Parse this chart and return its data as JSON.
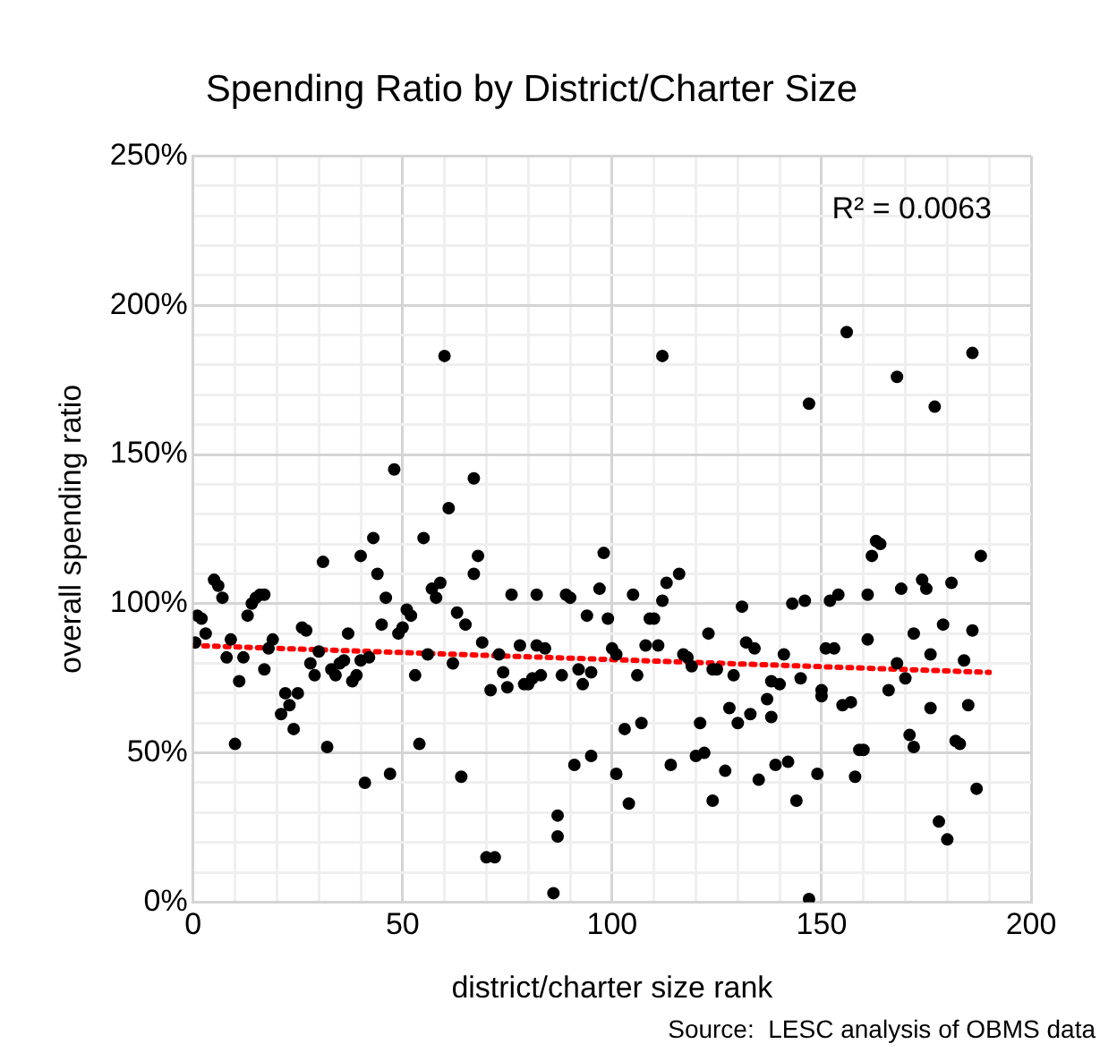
{
  "chart_data": {
    "type": "scatter",
    "title": "Spending Ratio by District/Charter Size",
    "xlabel": "district/charter size rank",
    "ylabel": "overall spending ratio",
    "annotations": [
      "R² = 0.0063",
      "Source:  LESC analysis of OBMS data"
    ],
    "xlim": [
      0,
      200
    ],
    "xticks": [
      0,
      {
        "value": 10,
        "label": null
      },
      {
        "value": 20,
        "label": null
      },
      {
        "value": 30,
        "label": null
      },
      {
        "value": 40,
        "label": null
      },
      50,
      {
        "value": 60,
        "label": null
      },
      {
        "value": 70,
        "label": null
      },
      {
        "value": 80,
        "label": null
      },
      {
        "value": 90,
        "label": null
      },
      100,
      {
        "value": 110,
        "label": null
      },
      {
        "value": 120,
        "label": null
      },
      {
        "value": 130,
        "label": null
      },
      {
        "value": 140,
        "label": null
      },
      150,
      {
        "value": 160,
        "label": null
      },
      {
        "value": 170,
        "label": null
      },
      {
        "value": 180,
        "label": null
      },
      {
        "value": 190,
        "label": null
      },
      200
    ],
    "ylim": [
      0,
      250
    ],
    "yticks": [
      {
        "value": 0,
        "label": "0%"
      },
      {
        "value": 10,
        "label": null
      },
      {
        "value": 20,
        "label": null
      },
      {
        "value": 30,
        "label": null
      },
      {
        "value": 40,
        "label": null
      },
      {
        "value": 50,
        "label": "50%"
      },
      {
        "value": 60,
        "label": null
      },
      {
        "value": 70,
        "label": null
      },
      {
        "value": 80,
        "label": null
      },
      {
        "value": 90,
        "label": null
      },
      {
        "value": 100,
        "label": "100%"
      },
      {
        "value": 110,
        "label": null
      },
      {
        "value": 120,
        "label": null
      },
      {
        "value": 130,
        "label": null
      },
      {
        "value": 140,
        "label": null
      },
      {
        "value": 150,
        "label": "150%"
      },
      {
        "value": 160,
        "label": null
      },
      {
        "value": 170,
        "label": null
      },
      {
        "value": 180,
        "label": null
      },
      {
        "value": 190,
        "label": null
      },
      {
        "value": 200,
        "label": "200%"
      },
      {
        "value": 210,
        "label": null
      },
      {
        "value": 220,
        "label": null
      },
      {
        "value": 230,
        "label": null
      },
      {
        "value": 240,
        "label": null
      },
      {
        "value": 250,
        "label": "250%"
      }
    ],
    "grid": true,
    "legend": false,
    "marker": "circle",
    "series": [
      {
        "color": "#000000",
        "x": [
          0.5,
          1,
          2,
          3,
          5,
          6,
          7,
          8,
          9,
          10,
          11,
          12,
          13,
          14,
          15,
          16,
          17,
          17,
          18,
          19,
          21,
          22,
          23,
          24,
          25,
          26,
          27,
          28,
          29,
          30,
          31,
          32,
          33,
          34,
          35,
          36,
          37,
          38,
          39,
          40,
          40,
          41,
          42,
          43,
          44,
          45,
          46,
          47,
          48,
          49,
          50,
          51,
          52,
          53,
          54,
          55,
          56,
          57,
          58,
          59,
          60,
          61,
          62,
          63,
          64,
          65,
          67,
          67,
          68,
          69,
          70,
          71,
          72,
          73,
          74,
          75,
          76,
          78,
          79,
          80,
          81,
          82,
          82,
          83,
          84,
          86,
          87,
          87,
          88,
          89,
          90,
          91,
          92,
          93,
          94,
          95,
          95,
          97,
          98,
          99,
          100,
          101,
          101,
          103,
          104,
          105,
          106,
          107,
          108,
          109,
          110,
          111,
          112,
          112,
          113,
          114,
          116,
          117,
          118,
          119,
          120,
          121,
          122,
          123,
          124,
          124,
          125,
          127,
          128,
          129,
          130,
          131,
          132,
          133,
          134,
          135,
          137,
          138,
          138,
          139,
          140,
          141,
          142,
          143,
          144,
          145,
          146,
          147,
          147,
          149,
          150,
          150,
          151,
          152,
          153,
          154,
          155,
          156,
          157,
          158,
          159,
          160,
          161,
          161,
          162,
          163,
          164,
          166,
          168,
          168,
          169,
          170,
          171,
          172,
          172,
          174,
          175,
          176,
          176,
          177,
          178,
          179,
          180,
          181,
          182,
          183,
          184,
          185,
          186,
          186,
          187,
          188
        ],
        "values": [
          87,
          96,
          95,
          90,
          108,
          106,
          102,
          82,
          88,
          53,
          74,
          82,
          96,
          100,
          102,
          103,
          103,
          78,
          85,
          88,
          63,
          70,
          66,
          58,
          70,
          92,
          91,
          80,
          76,
          84,
          114,
          52,
          78,
          76,
          80,
          81,
          90,
          74,
          76,
          116,
          81,
          40,
          82,
          122,
          110,
          93,
          102,
          43,
          145,
          90,
          92,
          98,
          96,
          76,
          53,
          122,
          83,
          105,
          102,
          107,
          183,
          132,
          80,
          97,
          42,
          93,
          142,
          110,
          116,
          87,
          15,
          71,
          15,
          83,
          77,
          72,
          103,
          86,
          73,
          73,
          75,
          86,
          103,
          76,
          85,
          3,
          22,
          29,
          76,
          103,
          102,
          46,
          78,
          73,
          96,
          49,
          77,
          105,
          117,
          95,
          85,
          43,
          83,
          58,
          33,
          103,
          76,
          60,
          86,
          95,
          95,
          86,
          183,
          101,
          107,
          46,
          110,
          83,
          82,
          79,
          49,
          60,
          50,
          90,
          34,
          78,
          78,
          44,
          65,
          76,
          60,
          99,
          87,
          63,
          85,
          41,
          68,
          62,
          74,
          46,
          73,
          83,
          47,
          100,
          34,
          75,
          101,
          1,
          167,
          43,
          69,
          71,
          85,
          101,
          85,
          103,
          66,
          191,
          67,
          42,
          51,
          51,
          88,
          103,
          116,
          121,
          120,
          71,
          80,
          176,
          105,
          75,
          56,
          52,
          90,
          108,
          105,
          83,
          65,
          166,
          27,
          93,
          21,
          107,
          54,
          53,
          81,
          66,
          91,
          184,
          38,
          116
        ]
      },
      {
        "type": "line",
        "color": "#ff0000",
        "x": [
          0,
          190
        ],
        "values": [
          86,
          77
        ],
        "line_style": "dotted",
        "marker": "none"
      }
    ]
  }
}
